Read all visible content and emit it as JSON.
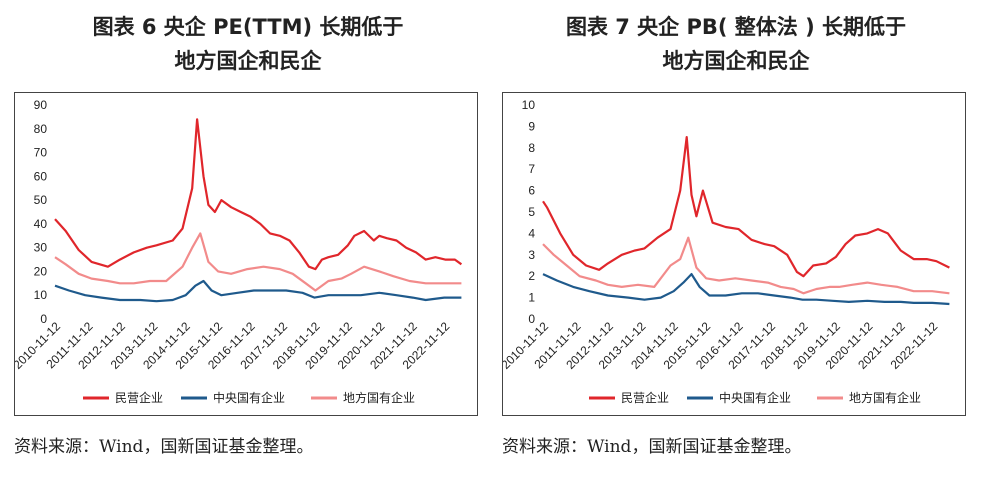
{
  "panels": [
    {
      "title_line1": "图表 6  央企 PE(TTM) 长期低于",
      "title_line2": "地方国企和民企",
      "source": "资料来源：Wind，国新国证基金整理。"
    },
    {
      "title_line1": "图表 7  央企 PB( 整体法 ) 长期低于",
      "title_line2": "地方国企和民企",
      "source": "资料来源：Wind，国新国证基金整理。"
    }
  ],
  "chart_data": [
    {
      "type": "line",
      "title": "图表 6  央企 PE(TTM) 长期低于 地方国企和民企",
      "ylim": [
        0,
        90
      ],
      "yticks": [
        0,
        10,
        20,
        30,
        40,
        50,
        60,
        70,
        80,
        90
      ],
      "x_tick_labels": [
        "2010-11-12",
        "2011-11-12",
        "2012-11-12",
        "2013-11-12",
        "2014-11-12",
        "2015-11-12",
        "2016-11-12",
        "2017-11-12",
        "2018-11-12",
        "2019-11-12",
        "2020-11-12",
        "2021-11-12",
        "2022-11-12"
      ],
      "legend_position": "bottom",
      "grid": false,
      "series": [
        {
          "name": "民营企业",
          "color": "#e0262b",
          "x": [
            2010.87,
            2011.2,
            2011.6,
            2012.0,
            2012.5,
            2012.87,
            2013.3,
            2013.7,
            2014.0,
            2014.5,
            2014.8,
            2015.1,
            2015.25,
            2015.45,
            2015.6,
            2015.8,
            2016.0,
            2016.3,
            2016.6,
            2016.9,
            2017.2,
            2017.5,
            2017.8,
            2018.1,
            2018.4,
            2018.7,
            2018.9,
            2019.1,
            2019.3,
            2019.6,
            2019.9,
            2020.1,
            2020.4,
            2020.7,
            2020.87,
            2021.1,
            2021.4,
            2021.7,
            2022.0,
            2022.3,
            2022.6,
            2022.9,
            2023.2,
            2023.4
          ],
          "values": [
            42,
            37,
            29,
            24,
            22,
            25,
            28,
            30,
            31,
            33,
            38,
            55,
            84,
            60,
            48,
            45,
            50,
            47,
            45,
            43,
            40,
            36,
            35,
            33,
            28,
            22,
            21,
            25,
            26,
            27,
            31,
            35,
            37,
            33,
            35,
            34,
            33,
            30,
            28,
            25,
            26,
            25,
            25,
            23
          ]
        },
        {
          "name": "中央国有企业",
          "color": "#1f5a8c",
          "x": [
            2010.87,
            2011.3,
            2011.8,
            2012.3,
            2012.87,
            2013.5,
            2014.0,
            2014.5,
            2014.9,
            2015.2,
            2015.45,
            2015.7,
            2016.0,
            2016.5,
            2017.0,
            2017.5,
            2018.0,
            2018.5,
            2018.87,
            2019.3,
            2019.8,
            2020.3,
            2020.87,
            2021.4,
            2021.9,
            2022.3,
            2022.87,
            2023.4
          ],
          "values": [
            14,
            12,
            10,
            9,
            8,
            8,
            7.5,
            8,
            10,
            14,
            16,
            12,
            10,
            11,
            12,
            12,
            12,
            11,
            9,
            10,
            10,
            10,
            11,
            10,
            9,
            8,
            9,
            9
          ]
        },
        {
          "name": "地方国有企业",
          "color": "#f28b8b",
          "x": [
            2010.87,
            2011.2,
            2011.6,
            2012.0,
            2012.5,
            2012.87,
            2013.3,
            2013.8,
            2014.3,
            2014.8,
            2015.1,
            2015.35,
            2015.6,
            2015.9,
            2016.3,
            2016.8,
            2017.3,
            2017.8,
            2018.2,
            2018.6,
            2018.9,
            2019.3,
            2019.7,
            2020.0,
            2020.4,
            2020.87,
            2021.3,
            2021.8,
            2022.3,
            2022.87,
            2023.4
          ],
          "values": [
            26,
            23,
            19,
            17,
            16,
            15,
            15,
            16,
            16,
            22,
            30,
            36,
            24,
            20,
            19,
            21,
            22,
            21,
            19,
            15,
            12,
            16,
            17,
            19,
            22,
            20,
            18,
            16,
            15,
            15,
            15
          ]
        }
      ]
    },
    {
      "type": "line",
      "title": "图表 7  央企 PB( 整体法 ) 长期低于 地方国企和民企",
      "ylim": [
        0,
        10
      ],
      "yticks": [
        0,
        1,
        2,
        3,
        4,
        5,
        6,
        7,
        8,
        9,
        10
      ],
      "x_tick_labels": [
        "2010-11-12",
        "2011-11-12",
        "2012-11-12",
        "2013-11-12",
        "2014-11-12",
        "2015-11-12",
        "2016-11-12",
        "2017-11-12",
        "2018-11-12",
        "2019-11-12",
        "2020-11-12",
        "2021-11-12",
        "2022-11-12"
      ],
      "legend_position": "bottom",
      "grid": false,
      "series": [
        {
          "name": "民营企业",
          "color": "#e0262b",
          "x": [
            2010.87,
            2011.0,
            2011.4,
            2011.8,
            2012.2,
            2012.6,
            2012.87,
            2013.3,
            2013.7,
            2014.0,
            2014.4,
            2014.8,
            2015.1,
            2015.3,
            2015.45,
            2015.6,
            2015.8,
            2016.1,
            2016.5,
            2016.9,
            2017.3,
            2017.7,
            2018.0,
            2018.4,
            2018.7,
            2018.9,
            2019.2,
            2019.6,
            2019.9,
            2020.2,
            2020.5,
            2020.87,
            2021.2,
            2021.5,
            2021.9,
            2022.3,
            2022.7,
            2023.0,
            2023.4
          ],
          "values": [
            5.5,
            5.2,
            4.0,
            3.0,
            2.5,
            2.3,
            2.6,
            3.0,
            3.2,
            3.3,
            3.8,
            4.2,
            6.0,
            8.5,
            5.8,
            4.8,
            6.0,
            4.5,
            4.3,
            4.2,
            3.7,
            3.5,
            3.4,
            3.0,
            2.2,
            2.0,
            2.5,
            2.6,
            2.9,
            3.5,
            3.9,
            4.0,
            4.2,
            4.0,
            3.2,
            2.8,
            2.8,
            2.7,
            2.4
          ]
        },
        {
          "name": "中央国有企业",
          "color": "#1f5a8c",
          "x": [
            2010.87,
            2011.3,
            2011.8,
            2012.3,
            2012.87,
            2013.5,
            2014.0,
            2014.5,
            2014.9,
            2015.2,
            2015.45,
            2015.7,
            2016.0,
            2016.5,
            2017.0,
            2017.5,
            2018.0,
            2018.5,
            2018.87,
            2019.3,
            2019.8,
            2020.3,
            2020.87,
            2021.4,
            2021.9,
            2022.3,
            2022.87,
            2023.4
          ],
          "values": [
            2.1,
            1.8,
            1.5,
            1.3,
            1.1,
            1.0,
            0.9,
            1.0,
            1.3,
            1.7,
            2.1,
            1.5,
            1.1,
            1.1,
            1.2,
            1.2,
            1.1,
            1.0,
            0.9,
            0.9,
            0.85,
            0.8,
            0.85,
            0.8,
            0.8,
            0.75,
            0.75,
            0.7
          ]
        },
        {
          "name": "地方国有企业",
          "color": "#f28b8b",
          "x": [
            2010.87,
            2011.2,
            2011.6,
            2012.0,
            2012.5,
            2012.87,
            2013.3,
            2013.8,
            2014.3,
            2014.8,
            2015.1,
            2015.35,
            2015.6,
            2015.9,
            2016.3,
            2016.8,
            2017.3,
            2017.8,
            2018.2,
            2018.6,
            2018.9,
            2019.3,
            2019.7,
            2020.0,
            2020.4,
            2020.87,
            2021.3,
            2021.8,
            2022.3,
            2022.87,
            2023.4
          ],
          "values": [
            3.5,
            3.0,
            2.5,
            2.0,
            1.8,
            1.6,
            1.5,
            1.6,
            1.5,
            2.5,
            2.8,
            3.8,
            2.4,
            1.9,
            1.8,
            1.9,
            1.8,
            1.7,
            1.5,
            1.4,
            1.2,
            1.4,
            1.5,
            1.5,
            1.6,
            1.7,
            1.6,
            1.5,
            1.3,
            1.3,
            1.2
          ]
        }
      ]
    }
  ]
}
